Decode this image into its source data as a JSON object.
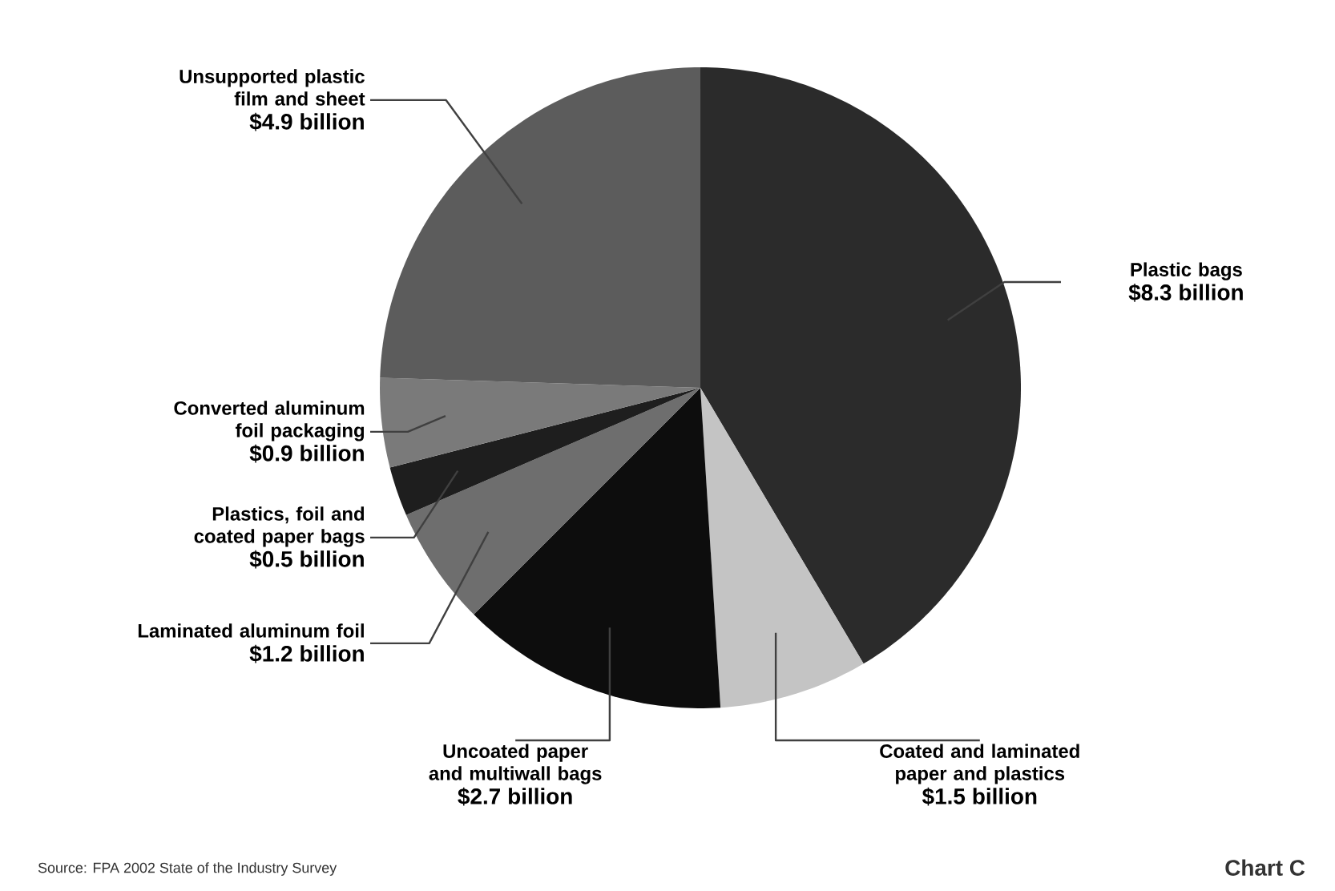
{
  "chart_data": {
    "type": "pie",
    "categories": [
      "Plastic bags",
      "Coated and laminated paper and plastics",
      "Uncoated paper and multiwall bags",
      "Laminated aluminum foil",
      "Plastics, foil and coated paper bags",
      "Converted aluminum foil packaging",
      "Unsupported plastic film and sheet"
    ],
    "values": [
      8.3,
      1.5,
      2.7,
      1.2,
      0.5,
      0.9,
      4.9
    ],
    "value_labels": [
      "$8.3 billion",
      "$1.5 billion",
      "$2.7 billion",
      "$1.2 billion",
      "$0.5 billion",
      "$0.9 billion",
      "$4.9 billion"
    ],
    "colors": [
      "#2b2b2b",
      "#c4c4c4",
      "#0d0d0d",
      "#6e6e6e",
      "#1e1e1e",
      "#7a7a7a",
      "#5c5c5c"
    ],
    "annotations": [
      "Source: FPA 2002 State of the Industry Survey",
      "Chart C"
    ]
  }
}
